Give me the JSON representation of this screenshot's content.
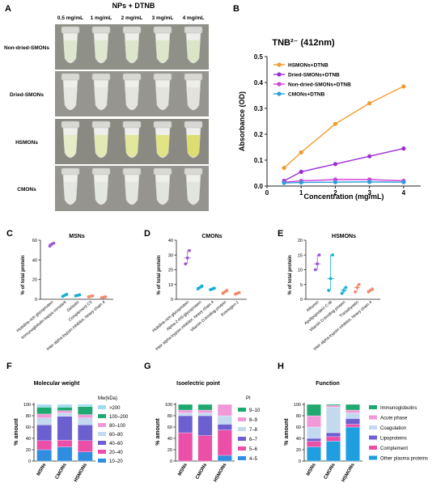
{
  "panelA": {
    "letter": "A",
    "title": "NPs + DTNB",
    "concentrations": [
      "0.5 mg/mL",
      "1 mg/mL",
      "2 mg/mL",
      "3 mg/mL",
      "4 mg/mL"
    ],
    "rows": [
      {
        "label": "Non-dried-SMONs",
        "tube_colors": [
          "#dfe6cf",
          "#e0e7d0",
          "#dde5cc",
          "#dde5ca",
          "#dce4c8"
        ],
        "bg": "#8f9087"
      },
      {
        "label": "Dried-SMONs",
        "tube_colors": [
          "#e6e6e2",
          "#e6e6e2",
          "#e4e4e0",
          "#e3e3df",
          "#e3e3de"
        ],
        "bg": "#97958f"
      },
      {
        "label": "HSMONs",
        "tube_colors": [
          "#e6ebc8",
          "#e3e9b4",
          "#e2e79b",
          "#e0e485",
          "#dcdf6f"
        ],
        "bg": "#8b8a82"
      },
      {
        "label": "CMONs",
        "tube_colors": [
          "#e4e6e1",
          "#e4e6e1",
          "#e3e5e0",
          "#e2e4df",
          "#e2e4df"
        ],
        "bg": "#95948f"
      }
    ]
  },
  "chart_data": [
    {
      "panel": "B",
      "type": "line",
      "title": "TNB²⁻ (412nm)",
      "xlabel": "Concentration (mg/mL)",
      "ylabel": "Absorbance (OD)",
      "xlim": [
        0,
        4.5
      ],
      "ylim": [
        0,
        0.5
      ],
      "xticks": [
        "0",
        "1",
        "2",
        "3",
        "4"
      ],
      "yticks": [
        "0.0",
        "0.1",
        "0.2",
        "0.3",
        "0.4",
        "0.5"
      ],
      "x": [
        0.5,
        1,
        2,
        3,
        4
      ],
      "legend_position": "top-left",
      "series": [
        {
          "name": "HSMONs+DTNB",
          "color": "#f39b2d",
          "values": [
            0.07,
            0.13,
            0.24,
            0.32,
            0.385
          ]
        },
        {
          "name": "Dried-SMONs+DTNB",
          "color": "#9b2fd6",
          "values": [
            0.02,
            0.055,
            0.085,
            0.115,
            0.145
          ]
        },
        {
          "name": "Non-dried-SMONs+DTNB",
          "color": "#d43fd8",
          "values": [
            0.015,
            0.02,
            0.025,
            0.025,
            0.02
          ]
        },
        {
          "name": "CMONs+DTNB",
          "color": "#2b9fdb",
          "values": [
            0.012,
            0.014,
            0.015,
            0.016,
            0.015
          ]
        }
      ]
    },
    {
      "panel": "C",
      "type": "scatter",
      "title": "MSNs",
      "ylabel": "% of total protein",
      "ylim": [
        0,
        60
      ],
      "yticks": [
        "0",
        "20",
        "40",
        "60"
      ],
      "categories": [
        "Histidine-rich glycoprotein",
        "Immunoglobulin kappa constant",
        "Gelsolin",
        "Complement C3",
        "Inter alpha-trypsin inhibitor, heavy chain 4"
      ],
      "colors": [
        "#9b59d0",
        "#14b0d6",
        "#14b0d6",
        "#f08a6c",
        "#f08a6c"
      ],
      "means": [
        56,
        4,
        4,
        3,
        2
      ],
      "points": [
        [
          54,
          56,
          57
        ],
        [
          3,
          4,
          5
        ],
        [
          3.5,
          4,
          4.5
        ],
        [
          2.5,
          3,
          3.5
        ],
        [
          1.5,
          2,
          2.5
        ]
      ]
    },
    {
      "panel": "D",
      "type": "scatter",
      "title": "CMONs",
      "ylabel": "% of total protein",
      "ylim": [
        0,
        40
      ],
      "yticks": [
        "0",
        "10",
        "20",
        "30",
        "40"
      ],
      "categories": [
        "Histidine-rich glycoprotein",
        "Alpha-2-HS-glycoprotein",
        "Inter alpha-trypsin inhibitor, heavy chain 4",
        "Vitamin D-binding protein",
        "Kininogen-1"
      ],
      "colors": [
        "#9b59d0",
        "#14b0d6",
        "#14b0d6",
        "#f08a6c",
        "#f08a6c"
      ],
      "means": [
        28,
        8,
        7,
        5,
        4
      ],
      "points": [
        [
          24,
          28,
          33
        ],
        [
          7,
          8,
          9
        ],
        [
          6.5,
          7,
          7.5
        ],
        [
          4,
          5,
          6
        ],
        [
          3.5,
          4,
          4.5
        ]
      ]
    },
    {
      "panel": "E",
      "type": "scatter",
      "title": "HSMONs",
      "ylabel": "% of total protein",
      "ylim": [
        0,
        20
      ],
      "yticks": [
        "0",
        "5",
        "10",
        "15",
        "20"
      ],
      "categories": [
        "Albumin",
        "Apolipoprotein C-III",
        "Vitamin D-binding protein",
        "Transthyretin",
        "Inter alpha-trypsin inhibitor, heavy chain 4"
      ],
      "colors": [
        "#9b59d0",
        "#14b0d6",
        "#14b0d6",
        "#f08a6c",
        "#f08a6c"
      ],
      "means": [
        12,
        7,
        3,
        4,
        3
      ],
      "points": [
        [
          10,
          12,
          15
        ],
        [
          3,
          7,
          15
        ],
        [
          2,
          3,
          4
        ],
        [
          2.5,
          4,
          5
        ],
        [
          2.5,
          3,
          3.5
        ]
      ]
    },
    {
      "panel": "F",
      "type": "bar",
      "stacked": true,
      "title": "Molecular weight",
      "ylabel": "% amount",
      "ylim": [
        0,
        100
      ],
      "yticks": [
        "0",
        "20",
        "40",
        "60",
        "80",
        "100"
      ],
      "categories": [
        "MSNs",
        "CMONs",
        "HSMONs"
      ],
      "legend_title": "Mw(kDa)",
      "series": [
        {
          "name": "10–20",
          "color": "#2f8ee0",
          "values": [
            20,
            25,
            16
          ]
        },
        {
          "name": "20–40",
          "color": "#ec4fa8",
          "values": [
            16,
            12,
            20
          ]
        },
        {
          "name": "40–60",
          "color": "#6c5fd0",
          "values": [
            28,
            42,
            28
          ]
        },
        {
          "name": "60–80",
          "color": "#c2d9f0",
          "values": [
            12,
            6,
            12
          ]
        },
        {
          "name": "80–100",
          "color": "#f199d8",
          "values": [
            7,
            4,
            6
          ]
        },
        {
          "name": "100–200",
          "color": "#1fa870",
          "values": [
            12,
            6,
            14
          ]
        },
        {
          "name": ">200",
          "color": "#9fdcf3",
          "values": [
            5,
            5,
            4
          ]
        }
      ]
    },
    {
      "panel": "G",
      "type": "bar",
      "stacked": true,
      "title": "Isoelectric point",
      "ylabel": "% amount",
      "ylim": [
        0,
        100
      ],
      "yticks": [
        "0",
        "20",
        "40",
        "60",
        "80",
        "100"
      ],
      "categories": [
        "MSNs",
        "CMONs",
        "HSMONs"
      ],
      "legend_title": "PI",
      "series": [
        {
          "name": "4–5",
          "color": "#2f8ee0",
          "values": [
            0,
            0,
            10
          ]
        },
        {
          "name": "5–6",
          "color": "#ec4fa8",
          "values": [
            50,
            45,
            45
          ]
        },
        {
          "name": "6–7",
          "color": "#6c5fd0",
          "values": [
            30,
            35,
            10
          ]
        },
        {
          "name": "7–8",
          "color": "#c2d9f0",
          "values": [
            5,
            5,
            15
          ]
        },
        {
          "name": "8–9",
          "color": "#f199d8",
          "values": [
            5,
            5,
            20
          ]
        },
        {
          "name": "9–10",
          "color": "#1fa870",
          "values": [
            10,
            10,
            0
          ]
        }
      ]
    },
    {
      "panel": "H",
      "type": "bar",
      "stacked": true,
      "title": "Function",
      "ylabel": "% amount",
      "ylim": [
        0,
        100
      ],
      "yticks": [
        "0",
        "20",
        "40",
        "60",
        "80",
        "100"
      ],
      "categories": [
        "MSNs",
        "CMONs",
        "HSMONs"
      ],
      "series": [
        {
          "name": "Other plasma proteins",
          "color": "#1f9fe0",
          "values": [
            25,
            35,
            60
          ]
        },
        {
          "name": "Complement",
          "color": "#ec4fa8",
          "values": [
            10,
            8,
            5
          ]
        },
        {
          "name": "Lipoproteins",
          "color": "#6c5fd0",
          "values": [
            5,
            7,
            10
          ]
        },
        {
          "name": "Coagulation",
          "color": "#c2d9f0",
          "values": [
            20,
            45,
            10
          ]
        },
        {
          "name": "Acute phase",
          "color": "#f199d8",
          "values": [
            20,
            3,
            5
          ]
        },
        {
          "name": "Immunoglobulins",
          "color": "#1fa870",
          "values": [
            20,
            2,
            10
          ]
        }
      ]
    }
  ]
}
